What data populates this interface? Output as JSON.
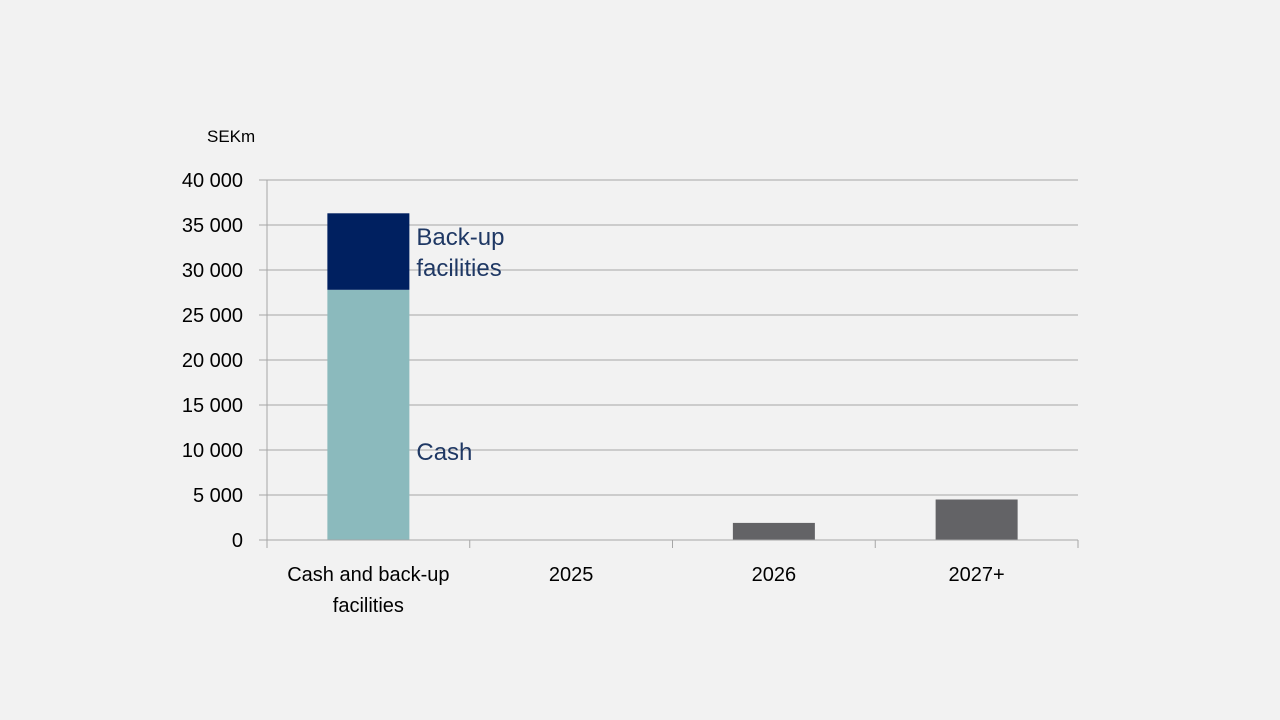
{
  "chart_data": {
    "type": "bar",
    "unit": "SEKm",
    "categories": [
      "Cash and back-up facilities",
      "2025",
      "2026",
      "2027+"
    ],
    "category_label_lines": [
      [
        "Cash and back-up",
        "facilities"
      ],
      [
        "2025"
      ],
      [
        "2026"
      ],
      [
        "2027+"
      ]
    ],
    "series": [
      {
        "name": "Cash",
        "values": [
          27800,
          0,
          0,
          0
        ],
        "color": "#8bbabd"
      },
      {
        "name": "Back-up facilities",
        "values": [
          8500,
          0,
          0,
          0
        ],
        "color": "#002060"
      },
      {
        "values": [
          0,
          0,
          1900,
          4500
        ],
        "color": "#636366"
      }
    ],
    "in_bar_labels": [
      {
        "series": "Back-up facilities",
        "lines": [
          "Back-up",
          "facilities"
        ],
        "color": "#1f3864"
      },
      {
        "series": "Cash",
        "lines": [
          "Cash"
        ],
        "color": "#1f3864"
      }
    ],
    "y_ticks": [
      0,
      5000,
      10000,
      15000,
      20000,
      25000,
      30000,
      35000,
      40000
    ],
    "y_tick_labels": [
      "0",
      "5 000",
      "10 000",
      "15 000",
      "20 000",
      "25 000",
      "30 000",
      "35 000",
      "40 000"
    ],
    "ylim": [
      0,
      40000
    ],
    "xlabel": "",
    "ylabel": "",
    "title": "",
    "grid": true,
    "legend": "none",
    "colors": {
      "background": "#f2f2f2",
      "grid": "#a6a6a6",
      "axis_text": "#000000"
    }
  }
}
